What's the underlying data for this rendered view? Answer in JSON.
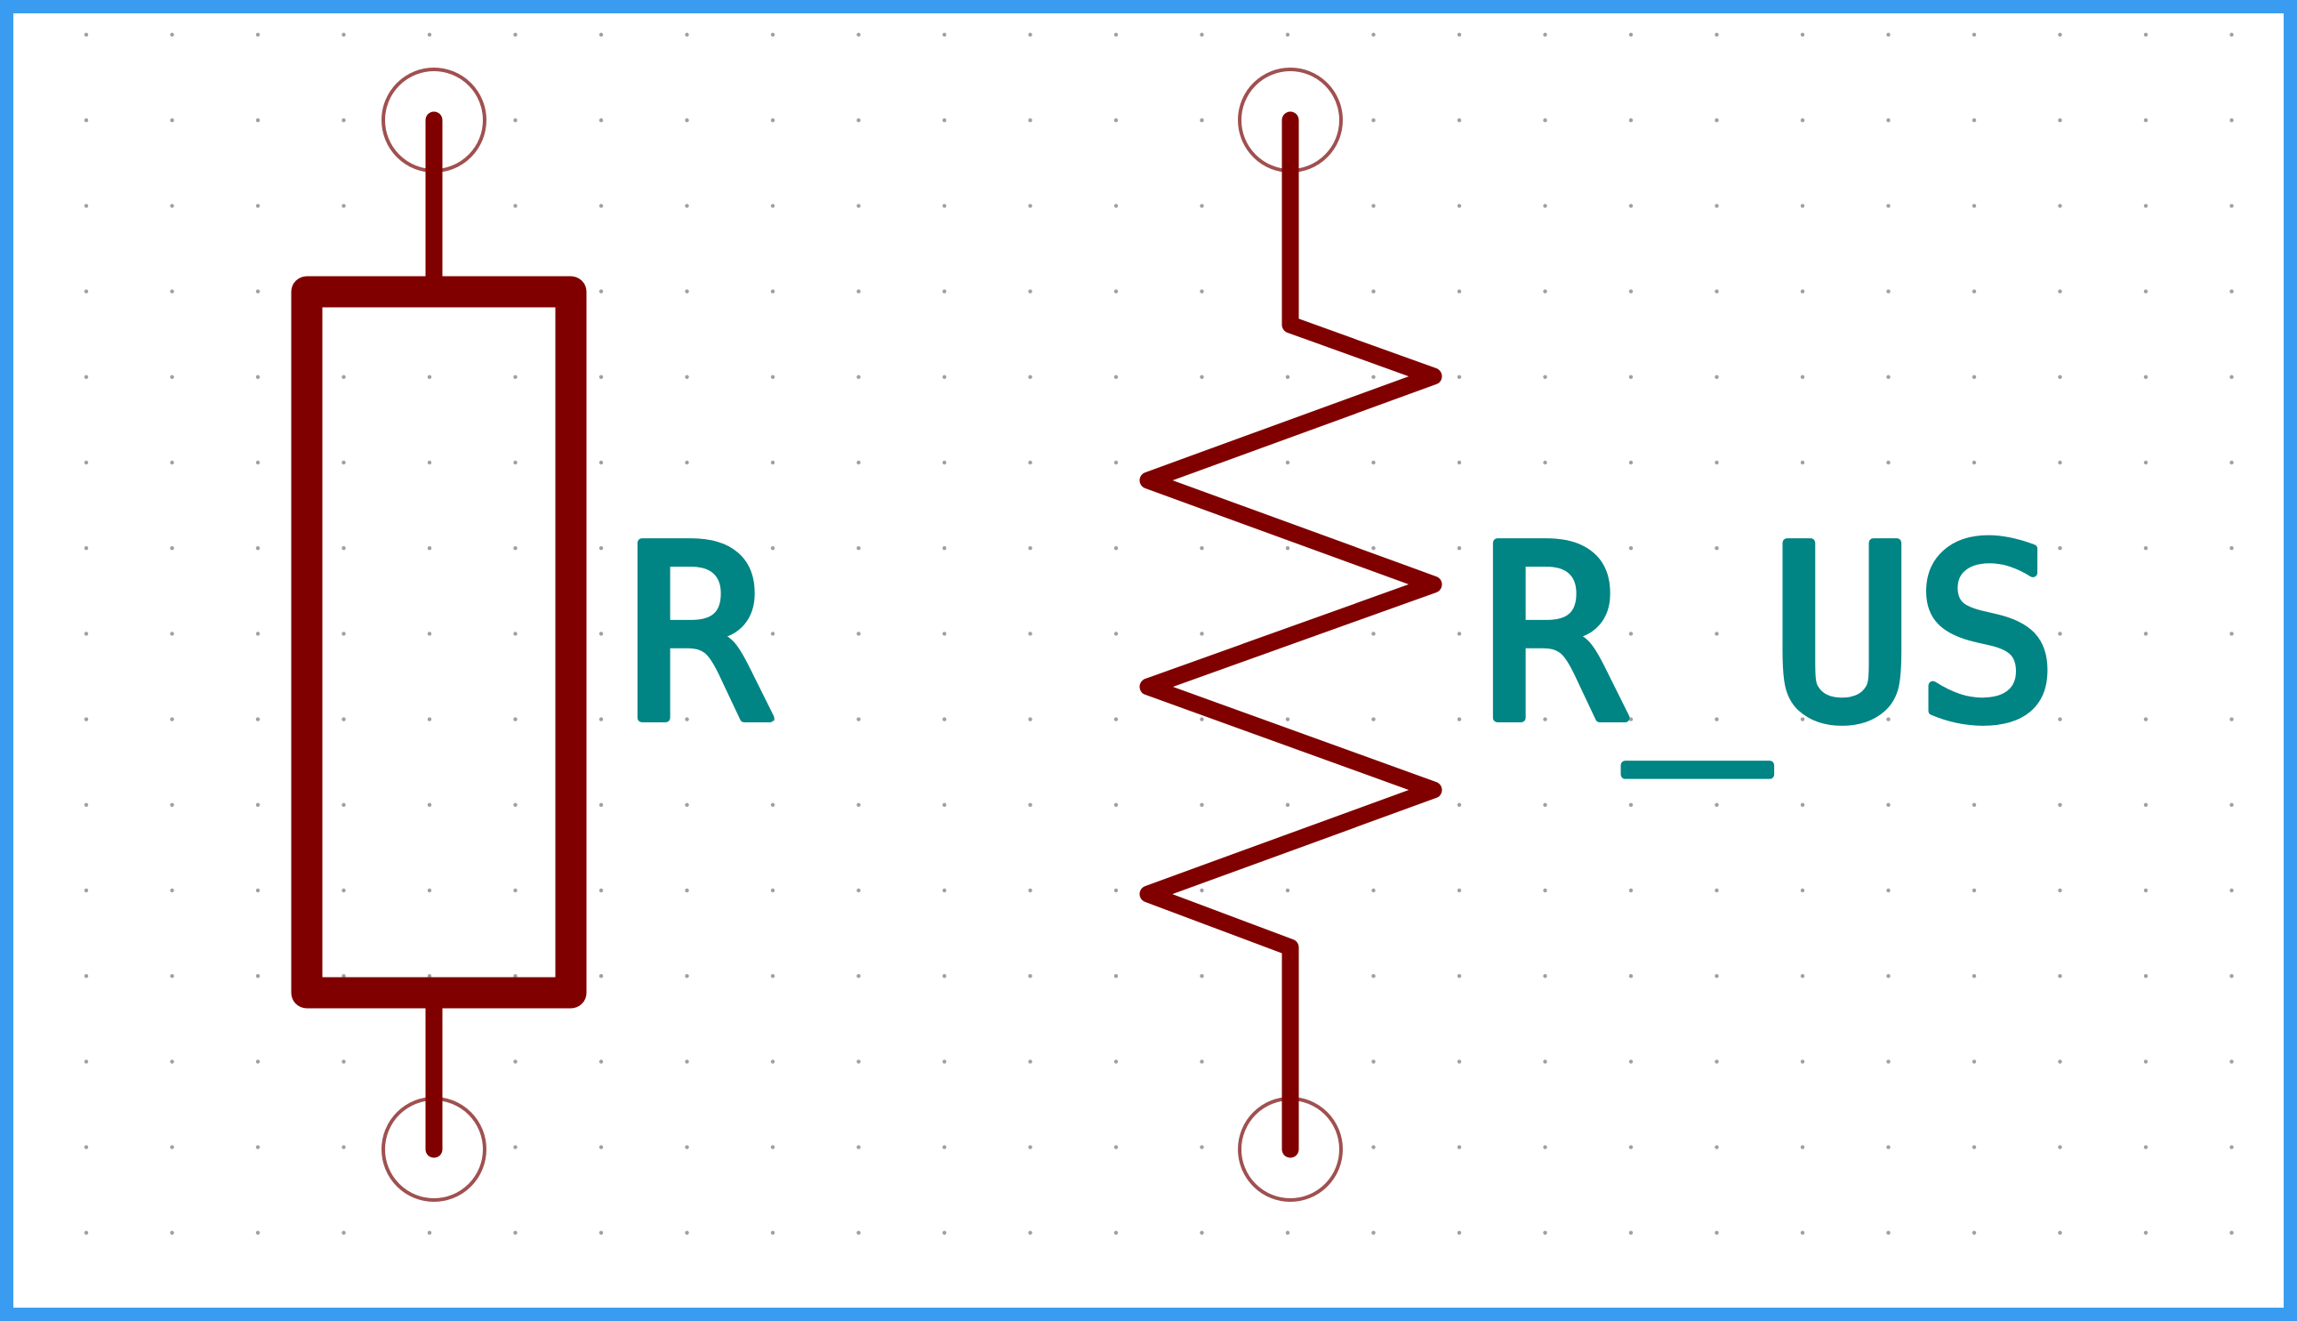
{
  "colors": {
    "frame": "#3a9cf0",
    "background": "#ffffff",
    "grid_dot": "#a0a0a0",
    "symbol_body": "#800000",
    "pin_circle": "#a05050",
    "reference_text": "#008484"
  },
  "symbols": [
    {
      "style": "IEC rectangle",
      "reference": "R",
      "pins": 2
    },
    {
      "style": "US zigzag",
      "reference": "R_US",
      "pins": 2
    }
  ],
  "grid": {
    "visible": true,
    "style": "dots"
  }
}
